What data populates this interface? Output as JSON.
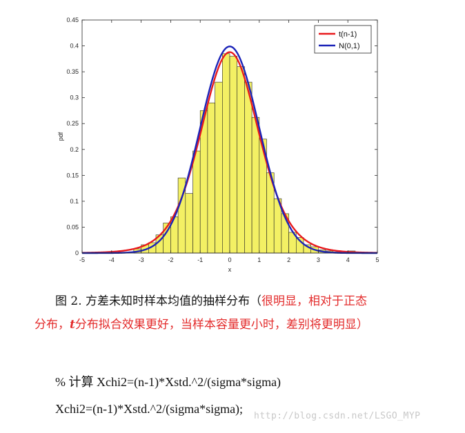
{
  "chart_data": {
    "type": "bar",
    "xlabel": "x",
    "ylabel": "pdf",
    "xlim": [
      -5,
      5
    ],
    "ylim": [
      0,
      0.45
    ],
    "xticks": [
      "-5",
      "-4",
      "-3",
      "-2",
      "-1",
      "0",
      "1",
      "2",
      "3",
      "4",
      "5"
    ],
    "yticks": [
      "0",
      "0.05",
      "0.1",
      "0.15",
      "0.2",
      "0.25",
      "0.3",
      "0.35",
      "0.4",
      "0.45"
    ],
    "grid": false,
    "legend_position": "top-right",
    "histogram": {
      "bin_width": 0.25,
      "bins": [
        [
          -3.25,
          0.008
        ],
        [
          -3.0,
          0.016
        ],
        [
          -2.75,
          0.02
        ],
        [
          -2.5,
          0.035
        ],
        [
          -2.25,
          0.058
        ],
        [
          -2.0,
          0.07
        ],
        [
          -1.75,
          0.145
        ],
        [
          -1.5,
          0.115
        ],
        [
          -1.25,
          0.197
        ],
        [
          -1.0,
          0.275
        ],
        [
          -0.75,
          0.29
        ],
        [
          -0.5,
          0.33
        ],
        [
          -0.25,
          0.385
        ],
        [
          0.0,
          0.38
        ],
        [
          0.25,
          0.36
        ],
        [
          0.5,
          0.33
        ],
        [
          0.75,
          0.262
        ],
        [
          1.0,
          0.22
        ],
        [
          1.25,
          0.155
        ],
        [
          1.5,
          0.105
        ],
        [
          1.75,
          0.076
        ],
        [
          2.0,
          0.04
        ],
        [
          2.25,
          0.03
        ],
        [
          2.5,
          0.016
        ],
        [
          2.75,
          0.012
        ],
        [
          3.0,
          0.006
        ],
        [
          3.25,
          0.004
        ],
        [
          3.5,
          0.002
        ],
        [
          4.0,
          0.004
        ]
      ],
      "color": "#f3f064"
    },
    "series": [
      {
        "name": "t(n-1)",
        "color": "#e8191c",
        "dist": "t",
        "df": 9
      },
      {
        "name": "N(0,1)",
        "color": "#1b23b8",
        "dist": "normal"
      }
    ]
  },
  "caption": {
    "prefix": "图 2. 方差未知时样本均值的抽样分布（",
    "red_part1": "很明显，相对于正态",
    "red_part2a": "分布，",
    "t_letter": "t",
    "red_part2b": "分布拟合效果更好，当样本容量更小时，差别将更明显）"
  },
  "code": {
    "line1": "% 计算 Xchi2=(n-1)*Xstd.^2/(sigma*sigma)",
    "line2": "Xchi2=(n-1)*Xstd.^2/(sigma*sigma);"
  },
  "watermark": "http://blog.csdn.net/LSGO_MYP"
}
